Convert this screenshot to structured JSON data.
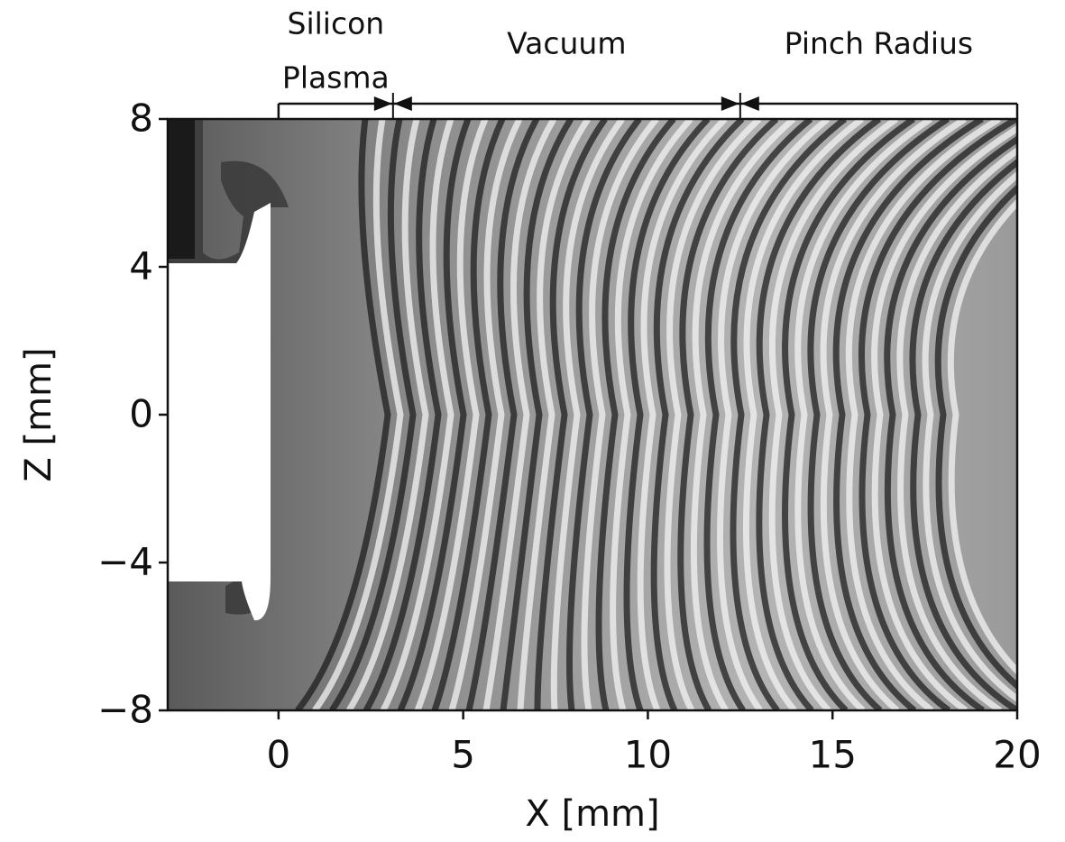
{
  "chart_data": {
    "type": "image",
    "xlabel": "X [mm]",
    "ylabel": "Z [mm]",
    "xlim": [
      -3,
      20
    ],
    "ylim": [
      -8,
      8
    ],
    "xticks": [
      0,
      5,
      10,
      15,
      20
    ],
    "yticks": [
      {
        "value": -8,
        "label": "−8"
      },
      {
        "value": -4,
        "label": "−4"
      },
      0,
      4,
      8
    ],
    "annotations": [
      {
        "lines": [
          "Silicon",
          "Plasma"
        ],
        "x": [
          0,
          3.1
        ]
      },
      {
        "lines": [
          "Vacuum"
        ],
        "x": [
          3.1,
          12.5
        ]
      },
      {
        "lines": [
          "Pinch Radius"
        ],
        "x": [
          12.5,
          20
        ]
      }
    ]
  }
}
